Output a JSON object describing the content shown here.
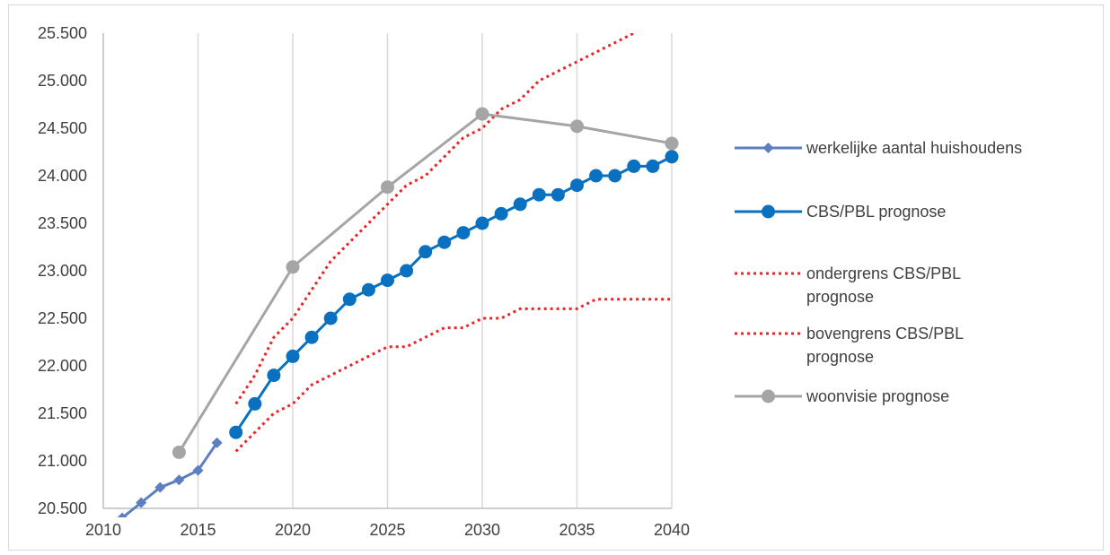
{
  "chart_data": {
    "type": "line",
    "title": "",
    "xlabel": "",
    "ylabel": "",
    "xlim": [
      2010,
      2040
    ],
    "ylim": [
      20500,
      25500
    ],
    "x_ticks": [
      2010,
      2015,
      2020,
      2025,
      2030,
      2035,
      2040
    ],
    "x_tick_labels": [
      "2010",
      "2015",
      "2020",
      "2025",
      "2030",
      "2035",
      "2040"
    ],
    "y_ticks": [
      20500,
      21000,
      21500,
      22000,
      22500,
      23000,
      23500,
      24000,
      24500,
      25000,
      25500
    ],
    "y_tick_labels": [
      "20.500",
      "21.000",
      "21.500",
      "22.000",
      "22.500",
      "23.000",
      "23.500",
      "24.000",
      "24.500",
      "25.000",
      "25.500"
    ],
    "grid": "vertical",
    "legend_position": "right",
    "series": [
      {
        "name": "werkelijke aantal huishoudens",
        "style": "solid",
        "marker": "diamond",
        "color": "#5b7fc0",
        "x": [
          2011,
          2012,
          2013,
          2014,
          2015,
          2016
        ],
        "y": [
          20400,
          20560,
          20720,
          20800,
          20900,
          21190
        ]
      },
      {
        "name": "CBS/PBL prognose",
        "style": "solid",
        "marker": "circle",
        "color": "#0a70c0",
        "x": [
          2017,
          2018,
          2019,
          2020,
          2021,
          2022,
          2023,
          2024,
          2025,
          2026,
          2027,
          2028,
          2029,
          2030,
          2031,
          2032,
          2033,
          2034,
          2035,
          2036,
          2037,
          2038,
          2039,
          2040
        ],
        "y": [
          21300,
          21600,
          21900,
          22100,
          22300,
          22500,
          22700,
          22800,
          22900,
          23000,
          23200,
          23300,
          23400,
          23500,
          23600,
          23700,
          23800,
          23800,
          23900,
          24000,
          24000,
          24100,
          24100,
          24200
        ]
      },
      {
        "name": "ondergrens CBS/PBL prognose",
        "legend_lines": [
          "ondergrens CBS/PBL",
          "prognose"
        ],
        "style": "dotted",
        "marker": "none",
        "color": "#e8262a",
        "x": [
          2017,
          2018,
          2019,
          2020,
          2021,
          2022,
          2023,
          2024,
          2025,
          2026,
          2027,
          2028,
          2029,
          2030,
          2031,
          2032,
          2033,
          2034,
          2035,
          2036,
          2037,
          2038,
          2039,
          2040
        ],
        "y": [
          21100,
          21300,
          21500,
          21600,
          21800,
          21900,
          22000,
          22100,
          22200,
          22200,
          22300,
          22400,
          22400,
          22500,
          22500,
          22600,
          22600,
          22600,
          22600,
          22700,
          22700,
          22700,
          22700,
          22700
        ]
      },
      {
        "name": "bovengrens CBS/PBL prognose",
        "legend_lines": [
          "bovengrens CBS/PBL",
          "prognose"
        ],
        "style": "dotted",
        "marker": "none",
        "color": "#e8262a",
        "x": [
          2017,
          2018,
          2019,
          2020,
          2021,
          2022,
          2023,
          2024,
          2025,
          2026,
          2027,
          2028,
          2029,
          2030,
          2031,
          2032,
          2033,
          2034,
          2035,
          2036,
          2037,
          2038
        ],
        "y": [
          21600,
          21900,
          22300,
          22500,
          22800,
          23100,
          23300,
          23500,
          23700,
          23900,
          24000,
          24200,
          24400,
          24500,
          24700,
          24800,
          25000,
          25100,
          25200,
          25300,
          25400,
          25500
        ]
      },
      {
        "name": "woonvisie prognose",
        "style": "solid",
        "marker": "circle",
        "color": "#a5a5a5",
        "x": [
          2014,
          2020,
          2025,
          2030,
          2035,
          2040
        ],
        "y": [
          21090,
          23040,
          23880,
          24650,
          24520,
          24340
        ]
      }
    ]
  }
}
